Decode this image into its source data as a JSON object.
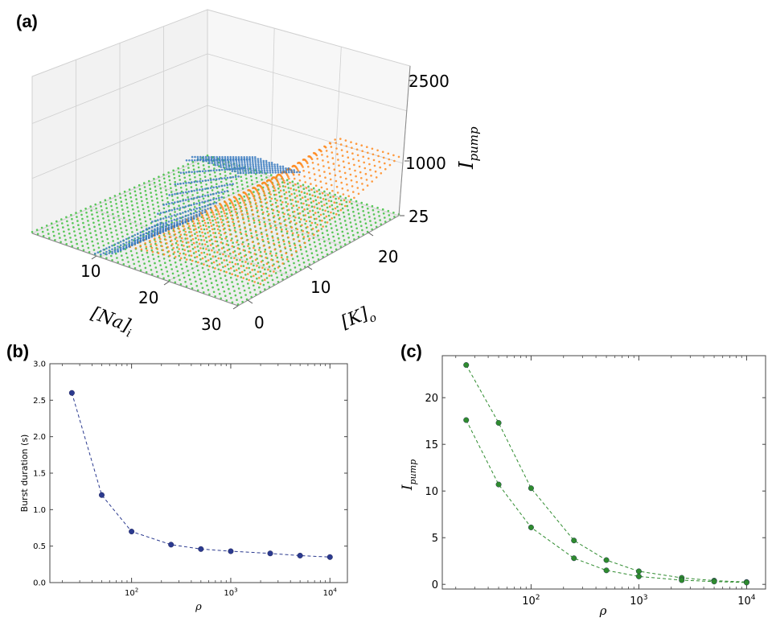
{
  "panels": {
    "a": "(a)",
    "b": "(b)",
    "c": "(c)"
  },
  "chart_data": [
    {
      "id": "a",
      "type": "scatter",
      "dims": 3,
      "xlabel": "[Na]",
      "xlabel_sub": "i",
      "ylabel": "[K]",
      "ylabel_sub": "o",
      "zlabel": "I",
      "zlabel_sub": "pump",
      "x_ticks": [
        "10",
        "20",
        "30"
      ],
      "y_ticks": [
        "0",
        "10",
        "20"
      ],
      "z_ticks": [
        "25",
        "1000",
        "2500"
      ],
      "series_colors": [
        "#3b7bbf",
        "#ff8a1f",
        "#3cbf3c"
      ],
      "grid": true
    },
    {
      "id": "b",
      "type": "line",
      "xscale": "log",
      "xlabel": "ρ",
      "ylabel": "Burst duration (s)",
      "x": [
        25,
        50,
        100,
        250,
        500,
        1000,
        2500,
        5000,
        10000
      ],
      "series": [
        {
          "values": [
            2.6,
            1.2,
            0.7,
            0.52,
            0.46,
            0.43,
            0.4,
            0.37,
            0.35
          ],
          "color": "#2b3a8f"
        }
      ],
      "xlim": [
        15,
        15000
      ],
      "ylim": [
        0,
        3
      ],
      "x_tick_labels": [
        "10",
        "10",
        "10"
      ],
      "x_tick_exponents": [
        "2",
        "3",
        "4"
      ],
      "x_tick_values": [
        100,
        1000,
        10000
      ],
      "y_ticks": [
        "0.0",
        "0.5",
        "1.0",
        "1.5",
        "2.0",
        "2.5",
        "3.0"
      ],
      "y_tick_values": [
        0,
        0.5,
        1,
        1.5,
        2,
        2.5,
        3
      ]
    },
    {
      "id": "c",
      "type": "line",
      "xscale": "log",
      "xlabel": "ρ",
      "ylabel": "I",
      "ylabel_sub": "pump",
      "x": [
        25,
        50,
        100,
        250,
        500,
        1000,
        2500,
        5000,
        10000
      ],
      "series": [
        {
          "values": [
            23.5,
            17.3,
            10.3,
            4.7,
            2.6,
            1.4,
            0.7,
            0.4,
            0.25
          ],
          "color": "#2e8b2e"
        },
        {
          "values": [
            17.6,
            10.7,
            6.1,
            2.8,
            1.5,
            0.85,
            0.45,
            0.3,
            0.2
          ],
          "color": "#2e8b2e"
        }
      ],
      "xlim": [
        15,
        15000
      ],
      "ylim": [
        -0.5,
        24.5
      ],
      "x_tick_labels": [
        "10",
        "10",
        "10"
      ],
      "x_tick_exponents": [
        "2",
        "3",
        "4"
      ],
      "x_tick_values": [
        100,
        1000,
        10000
      ],
      "y_ticks": [
        "0",
        "5",
        "10",
        "15",
        "20"
      ],
      "y_tick_values": [
        0,
        5,
        10,
        15,
        20
      ]
    }
  ]
}
